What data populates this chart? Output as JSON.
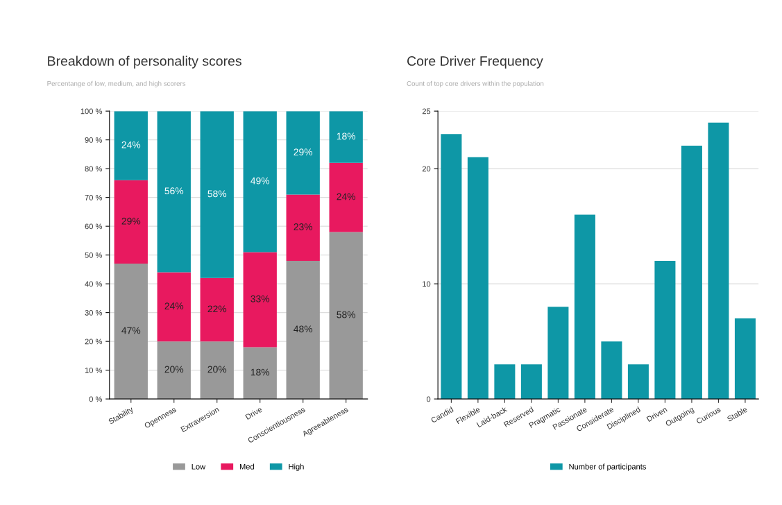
{
  "chart_data": [
    {
      "type": "bar",
      "title": "Breakdown of personality scores",
      "subtitle": "Percentange of low, medium, and high scorers",
      "stacked": true,
      "categories": [
        "Stability",
        "Openness",
        "Extraversion",
        "Drive",
        "Conscientiousness",
        "Agreeableness"
      ],
      "series": [
        {
          "name": "Low",
          "color": "#999999",
          "values": [
            47,
            20,
            20,
            18,
            48,
            58
          ],
          "value_labels": [
            "47%",
            "20%",
            "20%",
            "18%",
            "48%",
            "58%"
          ]
        },
        {
          "name": "Med",
          "color": "#e8195f",
          "values": [
            29,
            24,
            22,
            33,
            23,
            24
          ],
          "value_labels": [
            "29%",
            "24%",
            "22%",
            "33%",
            "23%",
            "24%"
          ]
        },
        {
          "name": "High",
          "color": "#0e97a6",
          "values": [
            24,
            56,
            58,
            49,
            29,
            18
          ],
          "value_labels": [
            "24%",
            "56%",
            "58%",
            "49%",
            "29%",
            "18%"
          ]
        }
      ],
      "ylim": [
        0,
        100
      ],
      "yticks": [
        {
          "value": 0,
          "label": "0 %"
        },
        {
          "value": 10,
          "label": "10 %"
        },
        {
          "value": 20,
          "label": "20 %"
        },
        {
          "value": 30,
          "label": "30 %"
        },
        {
          "value": 40,
          "label": "40 %"
        },
        {
          "value": 50,
          "label": "50 %"
        },
        {
          "value": 60,
          "label": "60 %"
        },
        {
          "value": 70,
          "label": "70 %"
        },
        {
          "value": 80,
          "label": "80 %"
        },
        {
          "value": 90,
          "label": "90 %"
        },
        {
          "value": 100,
          "label": "100 %"
        }
      ],
      "grid": "y",
      "legend": "bottom"
    },
    {
      "type": "bar",
      "title": "Core Driver Frequency",
      "subtitle": "Count of top core drivers within the population",
      "categories": [
        "Candid",
        "Flexible",
        "Laid-back",
        "Reserved",
        "Pragmatic",
        "Passionate",
        "Considerate",
        "Disciplined",
        "Driven",
        "Outgoing",
        "Curious",
        "Stable"
      ],
      "series": [
        {
          "name": "Number of participants",
          "color": "#0e97a6",
          "values": [
            23,
            21,
            3,
            3,
            8,
            16,
            5,
            3,
            12,
            22,
            24,
            7
          ]
        }
      ],
      "ylim": [
        0,
        25
      ],
      "yticks": [
        0,
        10,
        20,
        25
      ],
      "grid": "y",
      "legend": "bottom"
    }
  ]
}
